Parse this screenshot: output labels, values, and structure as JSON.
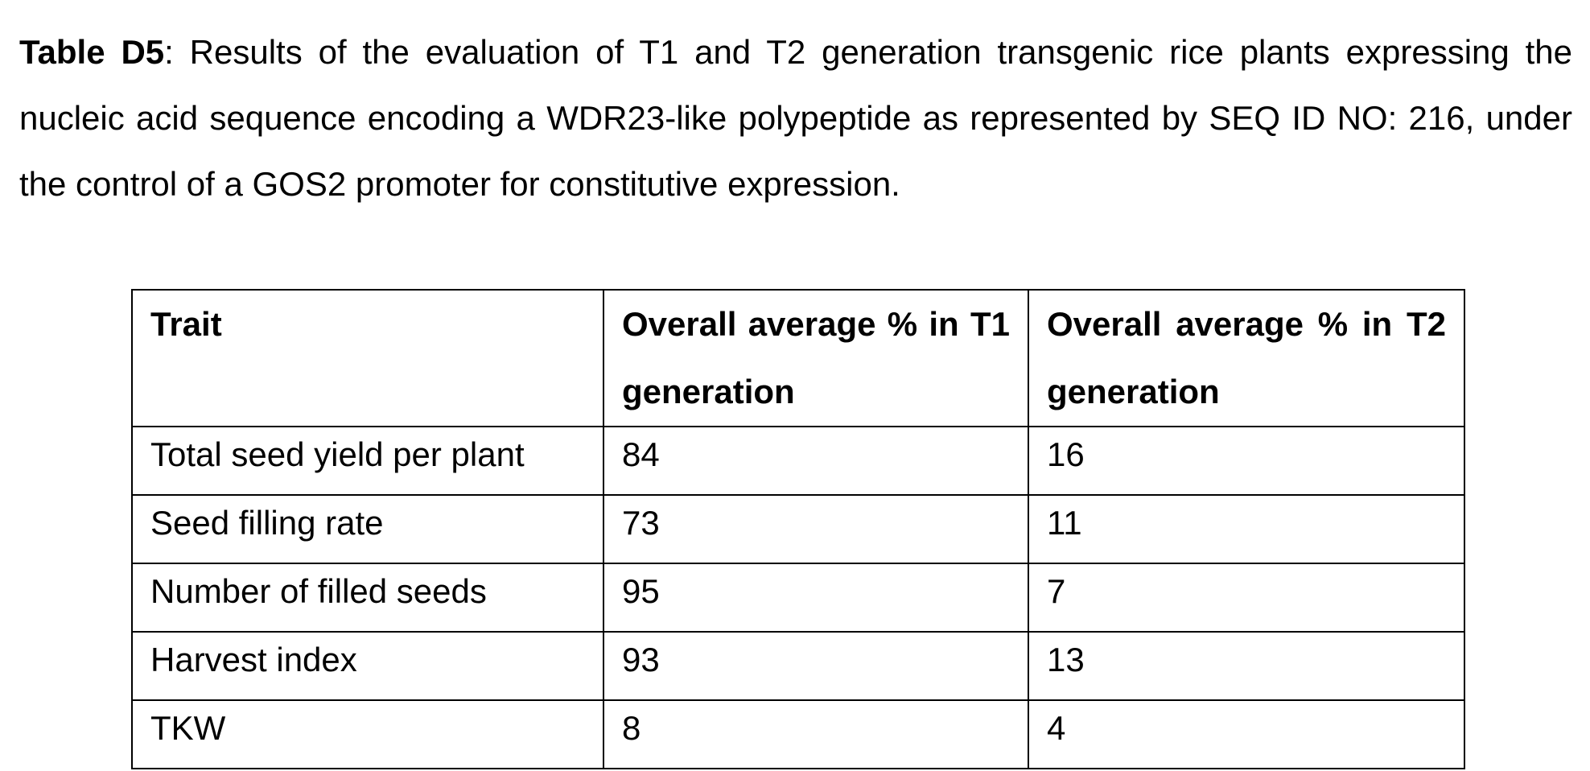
{
  "caption": {
    "label": "Table D5",
    "text": ": Results of the evaluation of T1 and T2 generation transgenic rice plants expressing the nucleic acid sequence encoding a WDR23-like polypeptide as represented by SEQ ID NO: 216, under the control of a GOS2 promoter for constitutive expression."
  },
  "table": {
    "headers": [
      "Trait",
      "Overall average % in T1 generation",
      "Overall average % in T2 generation"
    ],
    "rows": [
      [
        "Total seed yield per plant",
        "84",
        "16"
      ],
      [
        "Seed filling rate",
        "73",
        "11"
      ],
      [
        "Number of filled seeds",
        "95",
        "7"
      ],
      [
        "Harvest index",
        "93",
        "13"
      ],
      [
        "TKW",
        "8",
        "4"
      ]
    ]
  }
}
